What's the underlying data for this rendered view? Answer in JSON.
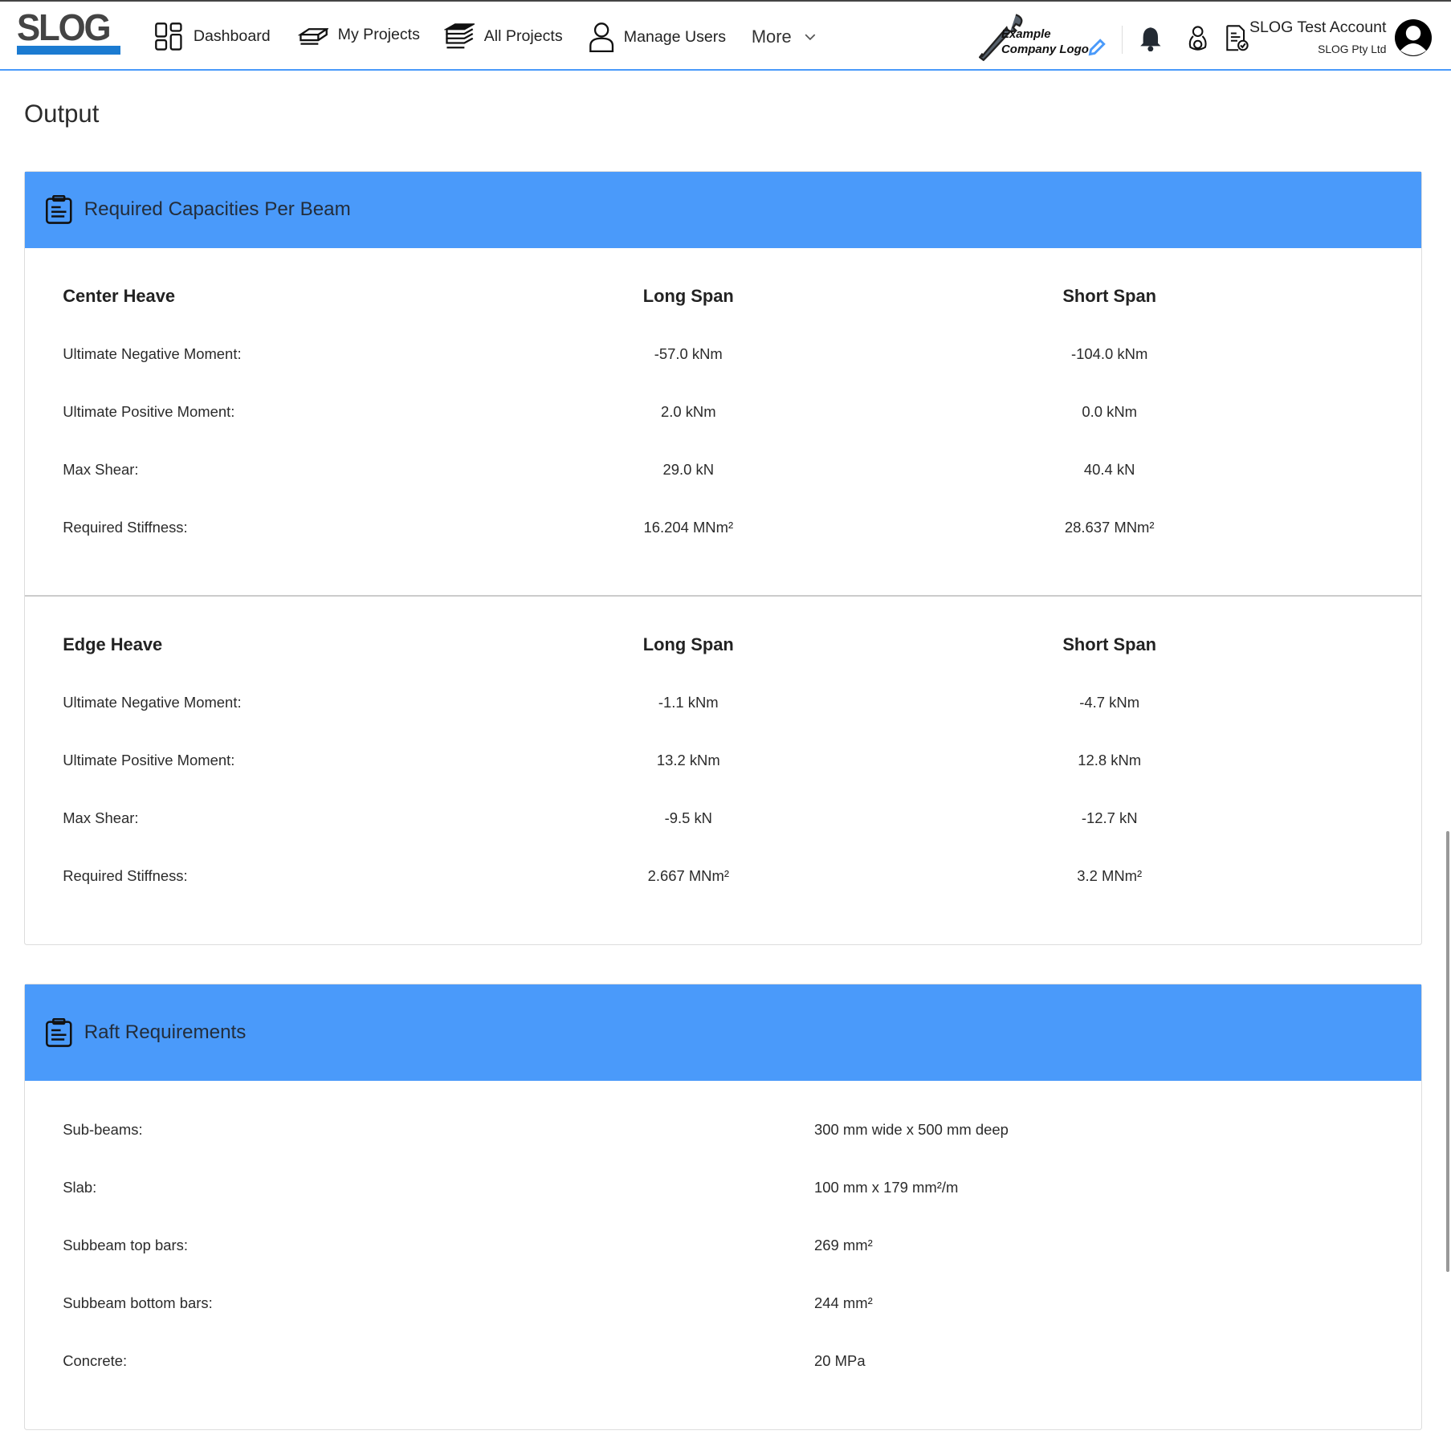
{
  "header": {
    "logo": "SLOG",
    "nav": [
      {
        "label": "Dashboard",
        "icon": "dashboard-grid-icon"
      },
      {
        "label": "My Projects",
        "icon": "stack-icon"
      },
      {
        "label": "All Projects",
        "icon": "stacks-icon"
      },
      {
        "label": "Manage Users",
        "icon": "user-icon"
      }
    ],
    "more": "More",
    "company_logo": "Example Company Logo",
    "company_logo_line1": "Example",
    "company_logo_line2": "Company Logo",
    "account_name": "SLOG Test Account",
    "company": "SLOG Pty Ltd"
  },
  "page": {
    "title": "Output"
  },
  "capacities": {
    "title": "Required Capacities Per Beam",
    "sections": [
      {
        "heading": "Center Heave",
        "col1": "Long Span",
        "col2": "Short Span",
        "rows": [
          [
            "Ultimate Negative Moment:",
            "-57.0 kNm",
            "-104.0 kNm"
          ],
          [
            "Ultimate Positive Moment:",
            "2.0 kNm",
            "0.0 kNm"
          ],
          [
            "Max Shear:",
            "29.0 kN",
            "40.4 kN"
          ],
          [
            "Required Stiffness:",
            "16.204 MNm²",
            "28.637 MNm²"
          ]
        ]
      },
      {
        "heading": "Edge Heave",
        "col1": "Long Span",
        "col2": "Short Span",
        "rows": [
          [
            "Ultimate Negative Moment:",
            "-1.1 kNm",
            "-4.7 kNm"
          ],
          [
            "Ultimate Positive Moment:",
            "13.2 kNm",
            "12.8 kNm"
          ],
          [
            "Max Shear:",
            "-9.5 kN",
            "-12.7 kN"
          ],
          [
            "Required Stiffness:",
            "2.667 MNm²",
            "3.2 MNm²"
          ]
        ]
      }
    ]
  },
  "raft": {
    "title": "Raft Requirements",
    "rows": [
      [
        "Sub-beams:",
        "300 mm wide x 500 mm deep"
      ],
      [
        "Slab:",
        "100 mm x 179 mm²/m"
      ],
      [
        "Subbeam top bars:",
        "269 mm²"
      ],
      [
        "Subbeam bottom bars:",
        "244 mm²"
      ],
      [
        "Concrete:",
        "20 MPa"
      ]
    ]
  },
  "colors": {
    "accent": "#4a9afa",
    "logo_blue": "#1b7bd1"
  }
}
